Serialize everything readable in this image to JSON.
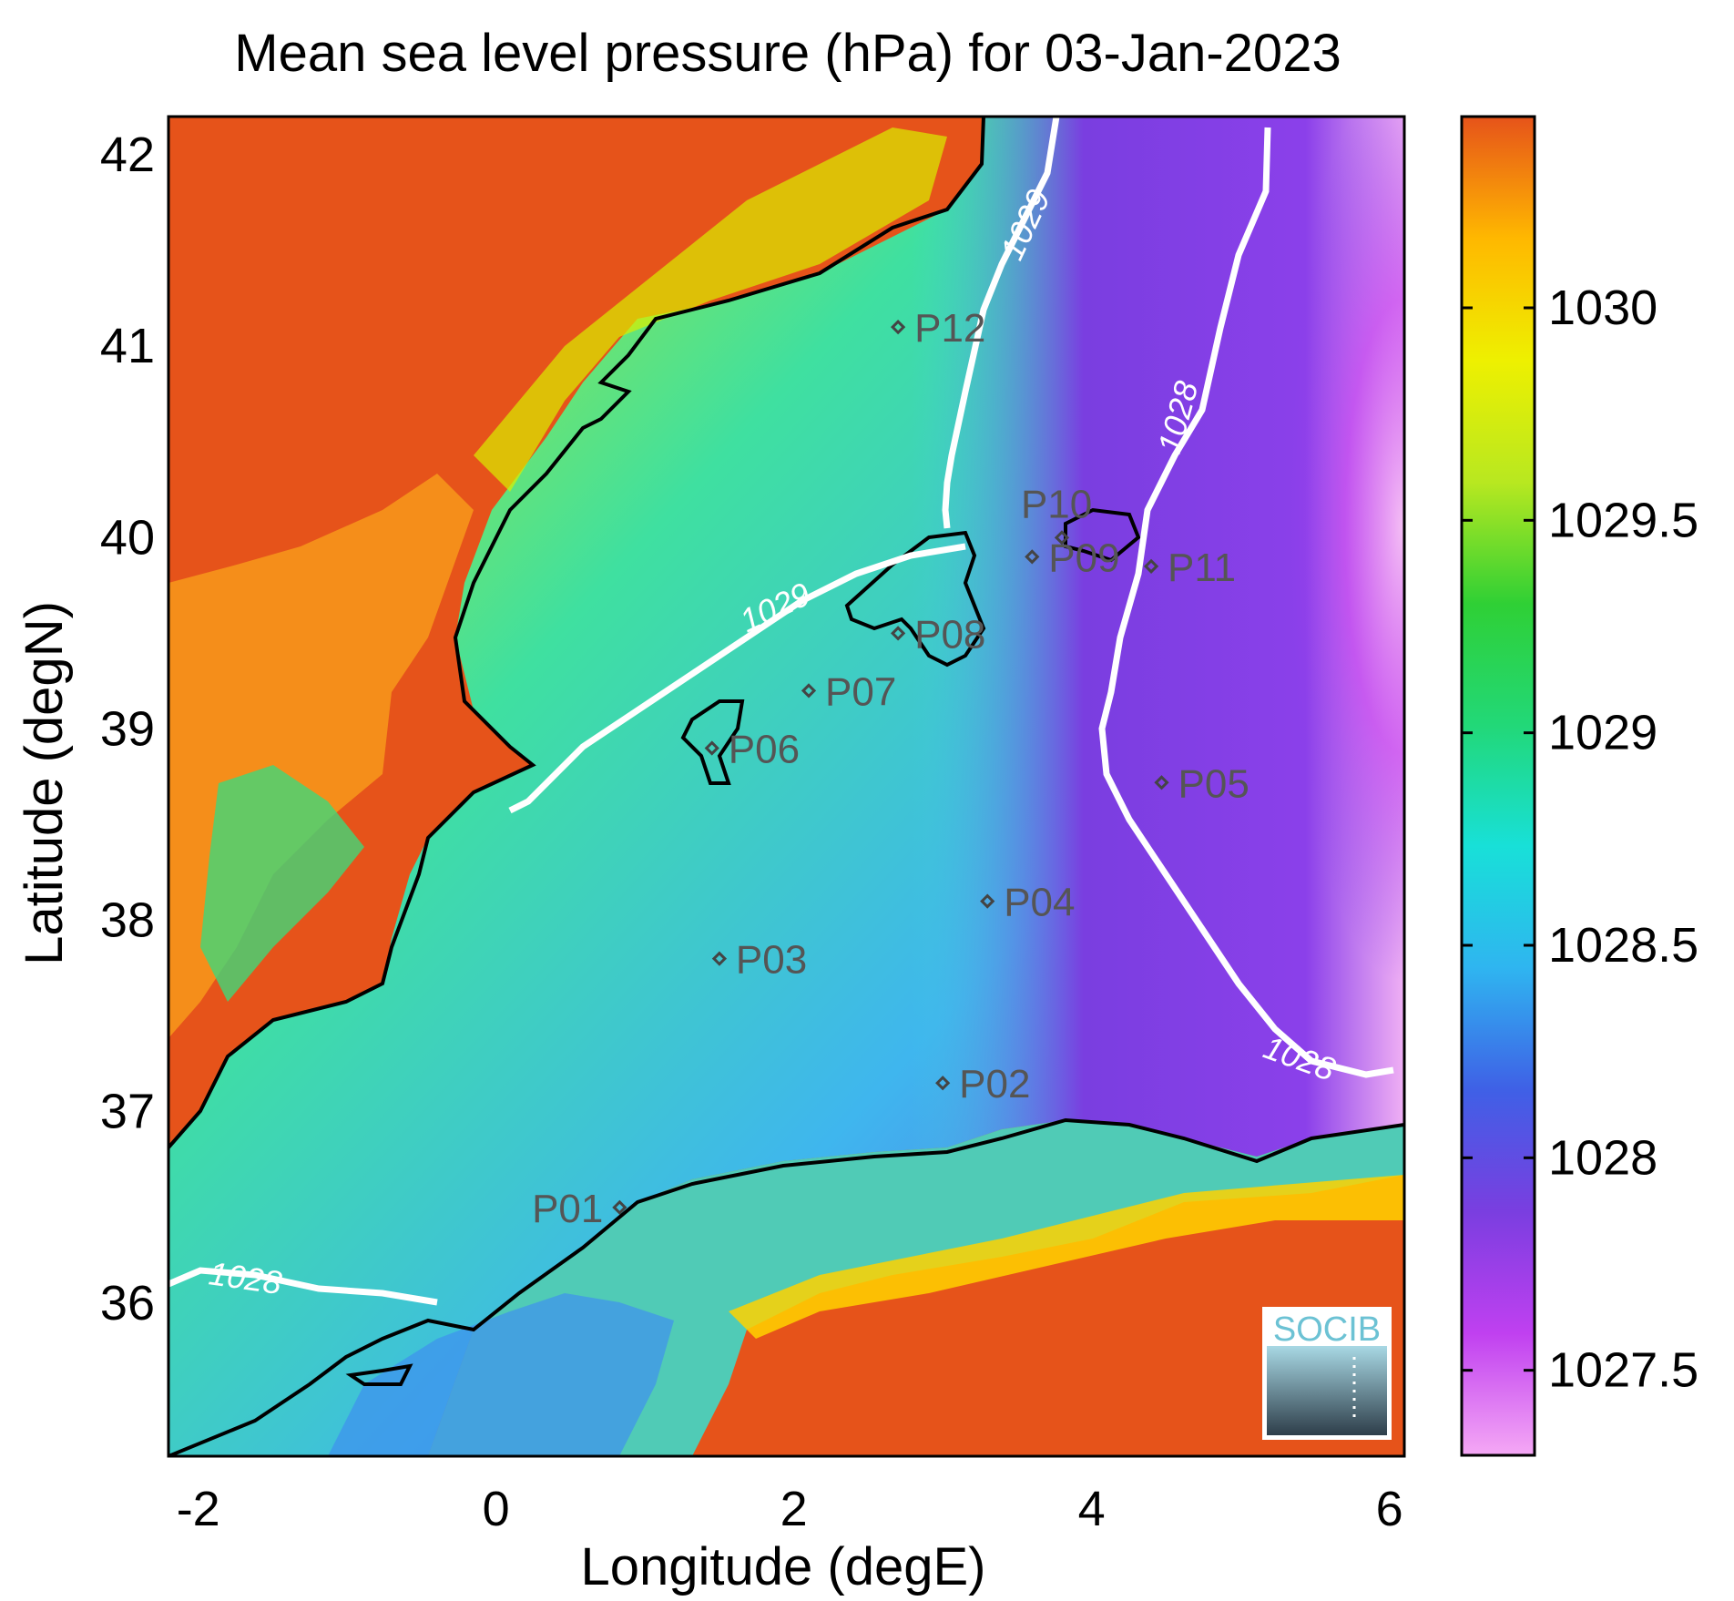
{
  "title": "Mean sea level pressure (hPa) for 03-Jan-2023",
  "xlabel": "Longitude (degE)",
  "ylabel": "Latitude (degN)",
  "xticks": [
    "-2",
    "0",
    "2",
    "4",
    "6"
  ],
  "yticks": [
    "42",
    "41",
    "40",
    "39",
    "38",
    "37",
    "36"
  ],
  "colorbar": {
    "ticks": [
      "1030",
      "1029.5",
      "1029",
      "1028.5",
      "1028",
      "1027.5"
    ],
    "range": [
      1027.3,
      1030.45
    ],
    "colors": [
      "#f5a8f5",
      "#c040f0",
      "#7a3ee0",
      "#3f60e6",
      "#2fb5f0",
      "#18e0d8",
      "#22d878",
      "#2fd035",
      "#b8e820",
      "#eef000",
      "#ffb800",
      "#e6531a"
    ]
  },
  "extent": {
    "lon": [
      -2.2,
      6.1
    ],
    "lat": [
      35.2,
      42.2
    ]
  },
  "contours": [
    {
      "value": "1029",
      "label": "1029"
    },
    {
      "value": "1028",
      "label": "1028"
    }
  ],
  "stations": [
    {
      "id": "P01",
      "label": "P01",
      "lon": 0.83,
      "lat": 36.5
    },
    {
      "id": "P02",
      "label": "P02",
      "lon": 3.0,
      "lat": 37.15
    },
    {
      "id": "P03",
      "label": "P03",
      "lon": 1.5,
      "lat": 37.8
    },
    {
      "id": "P04",
      "label": "P04",
      "lon": 3.3,
      "lat": 38.1
    },
    {
      "id": "P05",
      "label": "P05",
      "lon": 4.47,
      "lat": 38.72
    },
    {
      "id": "P06",
      "label": "P06",
      "lon": 1.45,
      "lat": 38.9
    },
    {
      "id": "P07",
      "label": "P07",
      "lon": 2.1,
      "lat": 39.2
    },
    {
      "id": "P08",
      "label": "P08",
      "lon": 2.7,
      "lat": 39.5
    },
    {
      "id": "P09",
      "label": "P09",
      "lon": 3.6,
      "lat": 39.9
    },
    {
      "id": "P10",
      "label": "P10",
      "lon": 3.8,
      "lat": 40.0
    },
    {
      "id": "P11",
      "label": "P11",
      "lon": 4.4,
      "lat": 39.85
    },
    {
      "id": "P12",
      "label": "P12",
      "lon": 2.7,
      "lat": 41.1
    }
  ],
  "logo": {
    "text": "SOCIB"
  }
}
